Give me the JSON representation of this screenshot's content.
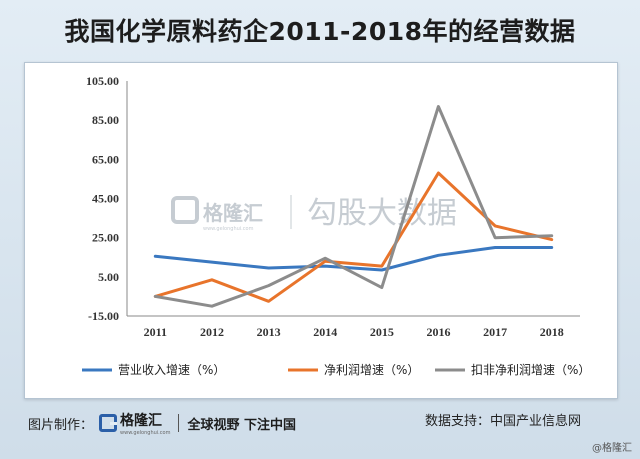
{
  "title": "我国化学原料药企2011-2018年的经营数据",
  "chart_data": {
    "type": "line",
    "categories": [
      "2011",
      "2012",
      "2013",
      "2014",
      "2015",
      "2016",
      "2017",
      "2018"
    ],
    "y_ticks": [
      "105.00",
      "85.00",
      "65.00",
      "45.00",
      "25.00",
      "5.00",
      "-15.00"
    ],
    "ylim": [
      -15,
      105
    ],
    "grid": false,
    "legend_position": "bottom",
    "series": [
      {
        "name": "营业收入增速（%）",
        "color": "#3a78c0",
        "values": [
          15.5,
          12.5,
          9.5,
          10.5,
          8.5,
          16.0,
          20.0,
          20.0
        ]
      },
      {
        "name": "净利润增速（%）",
        "color": "#e8742b",
        "values": [
          -5.0,
          3.5,
          -7.5,
          13.0,
          10.5,
          58.0,
          31.0,
          24.0
        ]
      },
      {
        "name": "扣非净利润增速（%）",
        "color": "#8c8c8c",
        "values": [
          -5.0,
          -10.0,
          0.5,
          14.5,
          -0.5,
          92.0,
          25.0,
          26.0
        ]
      }
    ]
  },
  "watermark": {
    "brand": "格隆汇",
    "brand_sub": "www.gelonghui.com",
    "text": "勾股大数据"
  },
  "footer": {
    "made_by_label": "图片制作：",
    "brand": "格隆汇",
    "brand_sub": "www.gelonghui.com",
    "slogan": "全球视野 下注中国",
    "source_label": "数据支持：中国产业信息网",
    "corner": "@格隆汇"
  }
}
